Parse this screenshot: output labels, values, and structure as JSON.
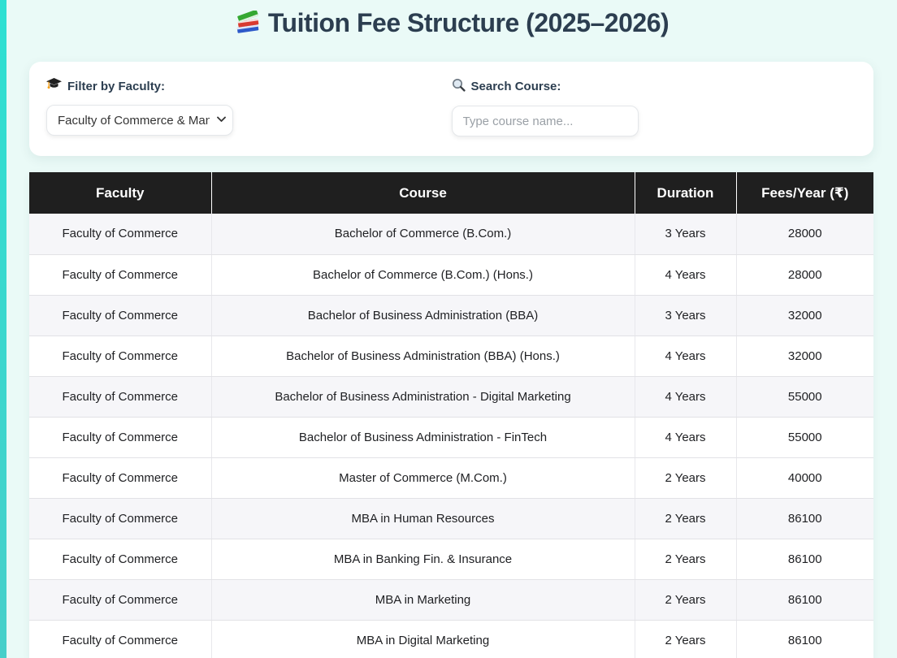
{
  "page": {
    "title": "Tuition Fee Structure (2025–2026)",
    "title_icon": "books-icon"
  },
  "filters": {
    "faculty": {
      "icon": "graduation-cap-icon",
      "label": "Filter by Faculty:",
      "selected_option": "Faculty of Commerce & Management"
    },
    "search": {
      "icon": "search-icon",
      "label": "Search Course:",
      "placeholder": "Type course name...",
      "value": ""
    }
  },
  "table": {
    "headers": [
      "Faculty",
      "Course",
      "Duration",
      "Fees/Year (₹)"
    ],
    "rows": [
      {
        "faculty": "Faculty of Commerce",
        "course": "Bachelor of Commerce (B.Com.)",
        "duration": "3 Years",
        "fees": "28000",
        "shaded": true
      },
      {
        "faculty": "Faculty of Commerce",
        "course": "Bachelor of Commerce (B.Com.) (Hons.)",
        "duration": "4 Years",
        "fees": "28000",
        "shaded": false
      },
      {
        "faculty": "Faculty of Commerce",
        "course": "Bachelor of Business Administration (BBA)",
        "duration": "3 Years",
        "fees": "32000",
        "shaded": true
      },
      {
        "faculty": "Faculty of Commerce",
        "course": "Bachelor of Business Administration (BBA) (Hons.)",
        "duration": "4 Years",
        "fees": "32000",
        "shaded": false
      },
      {
        "faculty": "Faculty of Commerce",
        "course": "Bachelor of Business Administration - Digital Marketing",
        "duration": "4 Years",
        "fees": "55000",
        "shaded": true
      },
      {
        "faculty": "Faculty of Commerce",
        "course": "Bachelor of Business Administration - FinTech",
        "duration": "4 Years",
        "fees": "55000",
        "shaded": false
      },
      {
        "faculty": "Faculty of Commerce",
        "course": "Master of Commerce (M.Com.)",
        "duration": "2 Years",
        "fees": "40000",
        "shaded": false
      },
      {
        "faculty": "Faculty of Commerce",
        "course": "MBA in Human Resources",
        "duration": "2 Years",
        "fees": "86100",
        "shaded": true
      },
      {
        "faculty": "Faculty of Commerce",
        "course": "MBA in Banking Fin. & Insurance",
        "duration": "2 Years",
        "fees": "86100",
        "shaded": false
      },
      {
        "faculty": "Faculty of Commerce",
        "course": "MBA in Marketing",
        "duration": "2 Years",
        "fees": "86100",
        "shaded": true
      },
      {
        "faculty": "Faculty of Commerce",
        "course": "MBA in Digital Marketing",
        "duration": "2 Years",
        "fees": "86100",
        "shaded": false
      }
    ]
  },
  "colors": {
    "page_background": "#eafaf7",
    "accent_bar": "#38dcce",
    "title_text": "#2c3e50",
    "table_header_background": "#1f1f1f",
    "table_header_text": "#ffffff",
    "row_stripe": "#f6f6f9"
  }
}
